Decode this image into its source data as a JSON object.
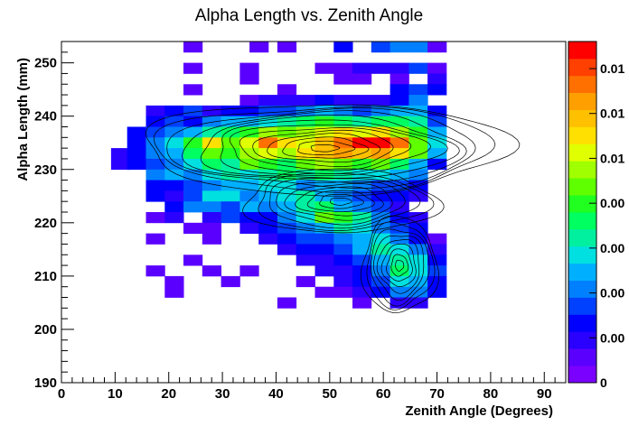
{
  "chart_data": {
    "type": "heatmap",
    "title": "Alpha Length vs. Zenith Angle",
    "xlabel": "Zenith Angle (Degrees)",
    "ylabel": "Alpha Length (mm)",
    "xlim": [
      0,
      94
    ],
    "ylim": [
      190,
      254
    ],
    "x_ticks": [
      0,
      10,
      20,
      30,
      40,
      50,
      60,
      70,
      80,
      90
    ],
    "y_ticks": [
      190,
      200,
      210,
      220,
      230,
      240,
      250
    ],
    "bin_width_x": 3.5,
    "bin_width_y": 2,
    "colorbar_ticks": [
      "0",
      "0.00",
      "0.00",
      "0.00",
      "0.00",
      "0.01",
      "0.01",
      "0.01"
    ],
    "palette": [
      "#7a00ff",
      "#5a00ff",
      "#2a00ff",
      "#0000ff",
      "#0040ff",
      "#0080ff",
      "#00b0ff",
      "#00e0e0",
      "#00f0a0",
      "#00ff60",
      "#20ff20",
      "#60ff00",
      "#a0ff00",
      "#e0ff00",
      "#ffe000",
      "#ffc000",
      "#ffa000",
      "#ff7000",
      "#ff4000",
      "#ff0000"
    ],
    "contour_color": "#000000",
    "grid": false,
    "bins": [
      [
        24.5,
        253,
        1
      ],
      [
        36.8,
        253,
        1
      ],
      [
        42,
        253,
        1
      ],
      [
        52.5,
        253,
        3
      ],
      [
        59.5,
        253,
        4
      ],
      [
        63,
        253,
        5
      ],
      [
        66.5,
        253,
        5
      ],
      [
        70,
        253,
        1
      ],
      [
        24.5,
        249,
        1
      ],
      [
        35,
        249,
        1
      ],
      [
        49,
        249,
        1
      ],
      [
        52.5,
        249,
        1
      ],
      [
        56,
        249,
        2
      ],
      [
        59.5,
        249,
        2
      ],
      [
        63,
        249,
        2
      ],
      [
        66.5,
        249,
        4
      ],
      [
        70,
        249,
        1
      ],
      [
        35,
        247,
        1
      ],
      [
        52.5,
        247,
        1
      ],
      [
        56,
        247,
        1
      ],
      [
        63,
        247,
        1
      ],
      [
        70,
        247,
        2
      ],
      [
        24.5,
        245,
        1
      ],
      [
        42,
        245,
        1
      ],
      [
        63,
        245,
        3
      ],
      [
        66.5,
        245,
        4
      ],
      [
        70,
        245,
        3
      ],
      [
        35,
        243,
        1
      ],
      [
        38.5,
        243,
        2
      ],
      [
        42,
        243,
        2
      ],
      [
        45.5,
        243,
        2
      ],
      [
        49,
        243,
        3
      ],
      [
        52.5,
        243,
        2
      ],
      [
        56,
        243,
        2
      ],
      [
        59.5,
        243,
        2
      ],
      [
        63,
        243,
        3
      ],
      [
        66.5,
        243,
        5
      ],
      [
        17.5,
        241,
        2
      ],
      [
        21,
        241,
        3
      ],
      [
        24.5,
        241,
        4
      ],
      [
        28,
        241,
        2
      ],
      [
        31.5,
        241,
        3
      ],
      [
        35,
        241,
        3
      ],
      [
        38.5,
        241,
        4
      ],
      [
        42,
        241,
        4
      ],
      [
        45.5,
        241,
        5
      ],
      [
        49,
        241,
        6
      ],
      [
        52.5,
        241,
        5
      ],
      [
        56,
        241,
        4
      ],
      [
        59.5,
        241,
        5
      ],
      [
        63,
        241,
        6
      ],
      [
        66.5,
        241,
        6
      ],
      [
        70,
        241,
        3
      ],
      [
        17.5,
        239,
        3
      ],
      [
        21,
        239,
        4
      ],
      [
        24.5,
        239,
        3
      ],
      [
        28,
        239,
        5
      ],
      [
        31.5,
        239,
        6
      ],
      [
        35,
        239,
        6
      ],
      [
        38.5,
        239,
        7
      ],
      [
        42,
        239,
        8
      ],
      [
        45.5,
        239,
        9
      ],
      [
        49,
        239,
        10
      ],
      [
        52.5,
        239,
        9
      ],
      [
        56,
        239,
        8
      ],
      [
        59.5,
        239,
        9
      ],
      [
        63,
        239,
        9
      ],
      [
        66.5,
        239,
        8
      ],
      [
        70,
        239,
        4
      ],
      [
        14,
        237,
        3
      ],
      [
        17.5,
        237,
        4
      ],
      [
        21,
        237,
        5
      ],
      [
        24.5,
        237,
        6
      ],
      [
        28,
        237,
        8
      ],
      [
        31.5,
        237,
        9
      ],
      [
        35,
        237,
        10
      ],
      [
        38.5,
        237,
        12
      ],
      [
        42,
        237,
        11
      ],
      [
        45.5,
        237,
        12
      ],
      [
        49,
        237,
        13
      ],
      [
        52.5,
        237,
        14
      ],
      [
        56,
        237,
        13
      ],
      [
        59.5,
        237,
        14
      ],
      [
        63,
        237,
        12
      ],
      [
        66.5,
        237,
        10
      ],
      [
        70,
        237,
        6
      ],
      [
        14,
        235,
        3
      ],
      [
        17.5,
        235,
        5
      ],
      [
        21,
        235,
        7
      ],
      [
        24.5,
        235,
        10
      ],
      [
        28,
        235,
        14
      ],
      [
        31.5,
        235,
        11
      ],
      [
        35,
        235,
        13
      ],
      [
        38.5,
        235,
        17
      ],
      [
        42,
        235,
        14
      ],
      [
        45.5,
        235,
        13
      ],
      [
        49,
        235,
        15
      ],
      [
        52.5,
        235,
        17
      ],
      [
        56,
        235,
        19
      ],
      [
        59.5,
        235,
        19
      ],
      [
        63,
        235,
        17
      ],
      [
        66.5,
        235,
        11
      ],
      [
        70,
        235,
        7
      ],
      [
        11,
        233,
        2
      ],
      [
        14,
        233,
        3
      ],
      [
        17.5,
        233,
        5
      ],
      [
        21,
        233,
        6
      ],
      [
        24.5,
        233,
        9
      ],
      [
        28,
        233,
        11
      ],
      [
        31.5,
        233,
        10
      ],
      [
        35,
        233,
        12
      ],
      [
        38.5,
        233,
        13
      ],
      [
        42,
        233,
        12
      ],
      [
        45.5,
        233,
        14
      ],
      [
        49,
        233,
        15
      ],
      [
        52.5,
        233,
        16
      ],
      [
        56,
        233,
        15
      ],
      [
        59.5,
        233,
        16
      ],
      [
        63,
        233,
        14
      ],
      [
        66.5,
        233,
        11
      ],
      [
        70,
        233,
        6
      ],
      [
        11,
        231,
        2
      ],
      [
        14,
        231,
        3
      ],
      [
        17.5,
        231,
        4
      ],
      [
        21,
        231,
        5
      ],
      [
        24.5,
        231,
        7
      ],
      [
        28,
        231,
        9
      ],
      [
        31.5,
        231,
        8
      ],
      [
        35,
        231,
        11
      ],
      [
        38.5,
        231,
        10
      ],
      [
        42,
        231,
        9
      ],
      [
        45.5,
        231,
        11
      ],
      [
        49,
        231,
        12
      ],
      [
        52.5,
        231,
        11
      ],
      [
        56,
        231,
        10
      ],
      [
        59.5,
        231,
        11
      ],
      [
        63,
        231,
        9
      ],
      [
        66.5,
        231,
        6
      ],
      [
        70,
        231,
        3
      ],
      [
        17.5,
        229,
        5
      ],
      [
        21,
        229,
        6
      ],
      [
        24.5,
        229,
        5
      ],
      [
        28,
        229,
        7
      ],
      [
        31.5,
        229,
        8
      ],
      [
        35,
        229,
        7
      ],
      [
        38.5,
        229,
        8
      ],
      [
        42,
        229,
        9
      ],
      [
        45.5,
        229,
        8
      ],
      [
        49,
        229,
        9
      ],
      [
        52.5,
        229,
        8
      ],
      [
        56,
        229,
        7
      ],
      [
        59.5,
        229,
        7
      ],
      [
        63,
        229,
        6
      ],
      [
        66.5,
        229,
        5
      ],
      [
        17.5,
        227,
        3
      ],
      [
        21,
        227,
        3
      ],
      [
        24.5,
        227,
        4
      ],
      [
        28,
        227,
        5
      ],
      [
        31.5,
        227,
        6
      ],
      [
        35,
        227,
        6
      ],
      [
        38.5,
        227,
        7
      ],
      [
        42,
        227,
        7
      ],
      [
        45.5,
        227,
        5
      ],
      [
        49,
        227,
        6
      ],
      [
        52.5,
        227,
        6
      ],
      [
        56,
        227,
        5
      ],
      [
        59.5,
        227,
        4
      ],
      [
        63,
        227,
        4
      ],
      [
        66.5,
        227,
        3
      ],
      [
        17.5,
        225,
        3
      ],
      [
        21,
        225,
        2
      ],
      [
        24.5,
        225,
        4
      ],
      [
        28,
        225,
        7
      ],
      [
        31.5,
        225,
        7
      ],
      [
        35,
        225,
        5
      ],
      [
        38.5,
        225,
        6
      ],
      [
        42,
        225,
        7
      ],
      [
        45.5,
        225,
        8
      ],
      [
        49,
        225,
        6
      ],
      [
        52.5,
        225,
        5
      ],
      [
        56,
        225,
        4
      ],
      [
        59.5,
        225,
        3
      ],
      [
        63,
        225,
        3
      ],
      [
        66.5,
        225,
        2
      ],
      [
        21,
        223,
        3
      ],
      [
        24.5,
        223,
        5
      ],
      [
        28,
        223,
        5
      ],
      [
        31.5,
        223,
        4
      ],
      [
        35,
        223,
        6
      ],
      [
        38.5,
        223,
        5
      ],
      [
        42,
        223,
        6
      ],
      [
        45.5,
        223,
        8
      ],
      [
        49,
        223,
        9
      ],
      [
        52.5,
        223,
        6
      ],
      [
        56,
        223,
        5
      ],
      [
        59.5,
        223,
        4
      ],
      [
        63,
        223,
        2
      ],
      [
        17.5,
        221,
        1
      ],
      [
        21,
        221,
        2
      ],
      [
        28,
        221,
        2
      ],
      [
        31.5,
        221,
        4
      ],
      [
        35,
        221,
        3
      ],
      [
        38.5,
        221,
        3
      ],
      [
        42,
        221,
        5
      ],
      [
        45.5,
        221,
        7
      ],
      [
        49,
        221,
        11
      ],
      [
        52.5,
        221,
        10
      ],
      [
        56,
        221,
        8
      ],
      [
        59.5,
        221,
        5
      ],
      [
        63,
        221,
        3
      ],
      [
        66.5,
        221,
        2
      ],
      [
        24.5,
        219,
        1
      ],
      [
        28,
        219,
        1
      ],
      [
        35,
        219,
        2
      ],
      [
        38.5,
        219,
        3
      ],
      [
        42,
        219,
        4
      ],
      [
        45.5,
        219,
        5
      ],
      [
        49,
        219,
        6
      ],
      [
        52.5,
        219,
        8
      ],
      [
        56,
        219,
        7
      ],
      [
        59.5,
        219,
        5
      ],
      [
        63,
        219,
        4
      ],
      [
        66.5,
        219,
        3
      ],
      [
        17.5,
        217,
        1
      ],
      [
        28,
        217,
        1
      ],
      [
        38.5,
        217,
        2
      ],
      [
        42,
        217,
        3
      ],
      [
        45.5,
        217,
        4
      ],
      [
        49,
        217,
        4
      ],
      [
        52.5,
        217,
        5
      ],
      [
        56,
        217,
        6
      ],
      [
        59.5,
        217,
        7
      ],
      [
        63,
        217,
        5
      ],
      [
        66.5,
        217,
        3
      ],
      [
        70,
        217,
        1
      ],
      [
        42,
        215,
        2
      ],
      [
        45.5,
        215,
        3
      ],
      [
        49,
        215,
        3
      ],
      [
        52.5,
        215,
        4
      ],
      [
        56,
        215,
        6
      ],
      [
        59.5,
        215,
        8
      ],
      [
        63,
        215,
        7
      ],
      [
        66.5,
        215,
        5
      ],
      [
        70,
        215,
        2
      ],
      [
        24.5,
        213,
        1
      ],
      [
        45.5,
        213,
        2
      ],
      [
        49,
        213,
        2
      ],
      [
        52.5,
        213,
        3
      ],
      [
        56,
        213,
        4
      ],
      [
        59.5,
        213,
        6
      ],
      [
        63,
        213,
        8
      ],
      [
        66.5,
        213,
        7
      ],
      [
        70,
        213,
        3
      ],
      [
        17.5,
        211,
        1
      ],
      [
        28,
        211,
        1
      ],
      [
        35,
        211,
        1
      ],
      [
        49,
        211,
        2
      ],
      [
        52.5,
        211,
        2
      ],
      [
        56,
        211,
        3
      ],
      [
        59.5,
        211,
        5
      ],
      [
        63,
        211,
        9
      ],
      [
        66.5,
        211,
        7
      ],
      [
        70,
        211,
        4
      ],
      [
        21,
        209,
        1
      ],
      [
        31.5,
        209,
        1
      ],
      [
        45.5,
        209,
        1
      ],
      [
        52.5,
        209,
        2
      ],
      [
        56,
        209,
        3
      ],
      [
        59.5,
        209,
        4
      ],
      [
        63,
        209,
        7
      ],
      [
        66.5,
        209,
        6
      ],
      [
        70,
        209,
        3
      ],
      [
        21,
        207,
        1
      ],
      [
        49,
        207,
        1
      ],
      [
        52.5,
        207,
        1
      ],
      [
        56,
        207,
        2
      ],
      [
        59.5,
        207,
        3
      ],
      [
        63,
        207,
        5
      ],
      [
        66.5,
        207,
        5
      ],
      [
        70,
        207,
        3
      ],
      [
        42,
        205,
        1
      ],
      [
        56,
        205,
        1
      ],
      [
        63,
        205,
        2
      ],
      [
        66.5,
        205,
        2
      ]
    ]
  }
}
